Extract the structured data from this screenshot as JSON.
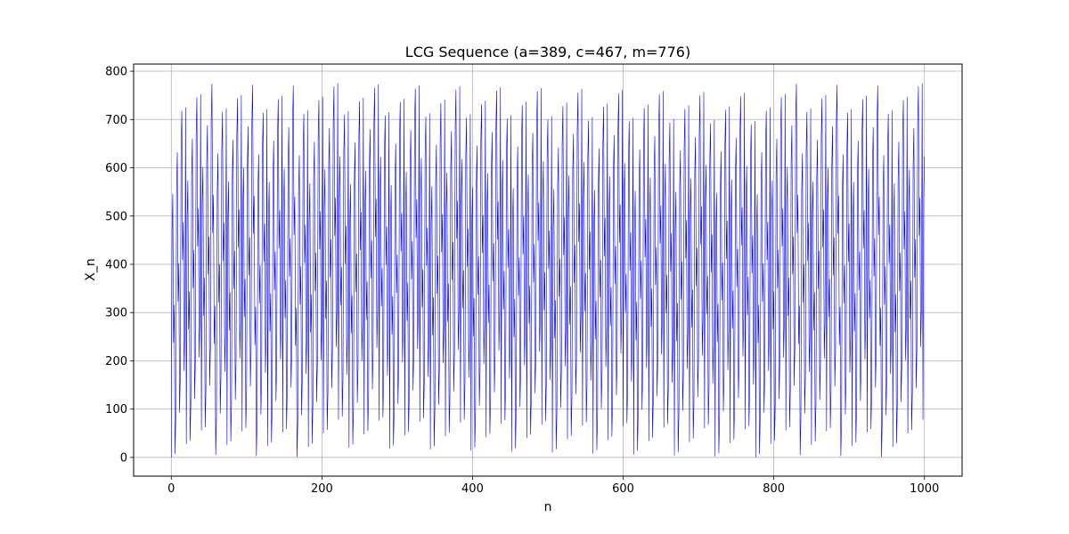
{
  "chart_data": {
    "type": "line",
    "title": "LCG Sequence (a=389, c=467, m=776)",
    "xlabel": "n",
    "ylabel": "X_n",
    "xlim": [
      -50,
      1050
    ],
    "ylim": [
      -38.8,
      814.8
    ],
    "xticks": [
      0,
      200,
      400,
      600,
      800,
      1000
    ],
    "yticks": [
      0,
      100,
      200,
      300,
      400,
      500,
      600,
      700,
      800
    ],
    "grid": true,
    "legend": "none",
    "series": [
      {
        "color": "#0000ff",
        "generator": {
          "a": 389,
          "c": 467,
          "m": 776,
          "seed": 0,
          "count": 1001
        },
        "n_start": 0,
        "n_end": 1000
      }
    ]
  }
}
